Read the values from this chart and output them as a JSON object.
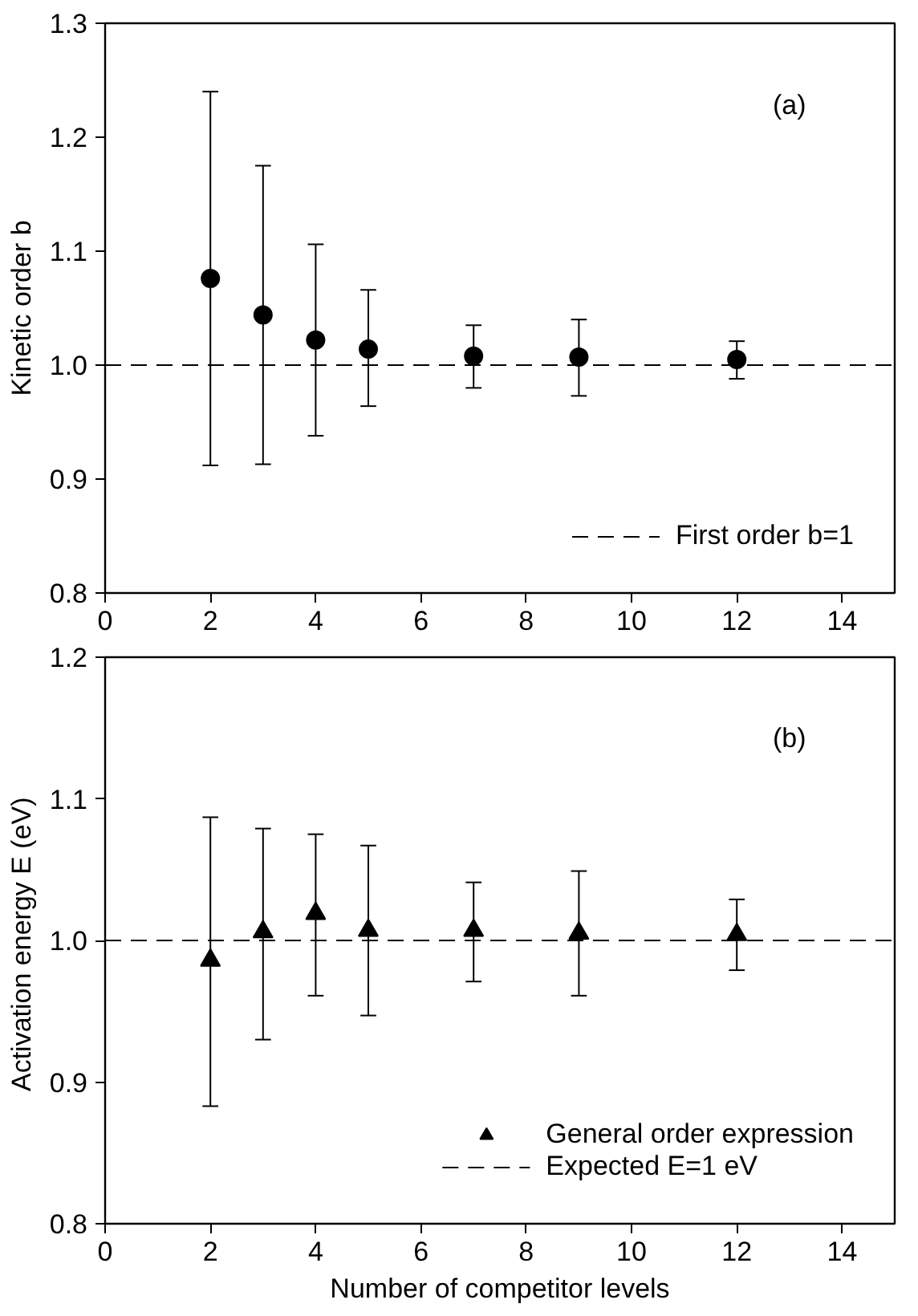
{
  "chart_data": [
    {
      "type": "scatter",
      "ylabel": "Kinetic order b",
      "annotations": [
        "(a)"
      ],
      "marker": "circle",
      "grid": false,
      "legend": "bottom right",
      "x": [
        2,
        3,
        4,
        5,
        7,
        9,
        12
      ],
      "series": [
        {
          "color": "#000000",
          "values": [
            1.076,
            1.044,
            1.022,
            1.014,
            1.008,
            1.007,
            1.005
          ],
          "errors": [
            [
              0.912,
              1.24
            ],
            [
              0.913,
              1.175
            ],
            [
              0.938,
              1.106
            ],
            [
              0.964,
              1.066
            ],
            [
              0.98,
              1.035
            ],
            [
              0.973,
              1.04
            ],
            [
              0.988,
              1.021
            ]
          ]
        }
      ],
      "ref_lines": [
        {
          "axis": "y",
          "value": 1.0,
          "label": "First order b=1",
          "line_style": "dashed",
          "color": "#000000"
        }
      ],
      "xlim": [
        0,
        15
      ],
      "xticks": [
        0,
        2,
        4,
        6,
        8,
        10,
        12,
        14
      ],
      "ylim": [
        0.8,
        1.3
      ],
      "yticks": [
        {
          "value": 0.8,
          "label": "0.8"
        },
        {
          "value": 0.9,
          "label": "0.9"
        },
        {
          "value": 1.0,
          "label": "1.0"
        },
        {
          "value": 1.1,
          "label": "1.1"
        },
        {
          "value": 1.2,
          "label": "1.2"
        },
        {
          "value": 1.3,
          "label": "1.3"
        }
      ]
    },
    {
      "type": "scatter",
      "xlabel": "Number of competitor levels",
      "ylabel": "Activation energy E  (eV)",
      "annotations": [
        "(b)"
      ],
      "marker": "triangle",
      "grid": false,
      "legend": "bottom right",
      "x": [
        2,
        3,
        4,
        5,
        7,
        9,
        12
      ],
      "series": [
        {
          "name": "General order expression",
          "color": "#000000",
          "values": [
            0.986,
            1.006,
            1.019,
            1.007,
            1.007,
            1.005,
            1.004
          ],
          "errors": [
            [
              0.883,
              1.087
            ],
            [
              0.93,
              1.079
            ],
            [
              0.961,
              1.075
            ],
            [
              0.947,
              1.067
            ],
            [
              0.971,
              1.041
            ],
            [
              0.961,
              1.049
            ],
            [
              0.979,
              1.029
            ]
          ]
        }
      ],
      "ref_lines": [
        {
          "axis": "y",
          "value": 1.0,
          "label": "Expected E=1 eV",
          "line_style": "dashed",
          "color": "#000000"
        }
      ],
      "xlim": [
        0,
        15
      ],
      "xticks": [
        0,
        2,
        4,
        6,
        8,
        10,
        12,
        14
      ],
      "ylim": [
        0.8,
        1.2
      ],
      "yticks": [
        {
          "value": 0.8,
          "label": "0.8"
        },
        {
          "value": 0.9,
          "label": "0.9"
        },
        {
          "value": 1.0,
          "label": "1.0"
        },
        {
          "value": 1.1,
          "label": "1.1"
        },
        {
          "value": 1.2,
          "label": "1.2"
        }
      ]
    }
  ]
}
